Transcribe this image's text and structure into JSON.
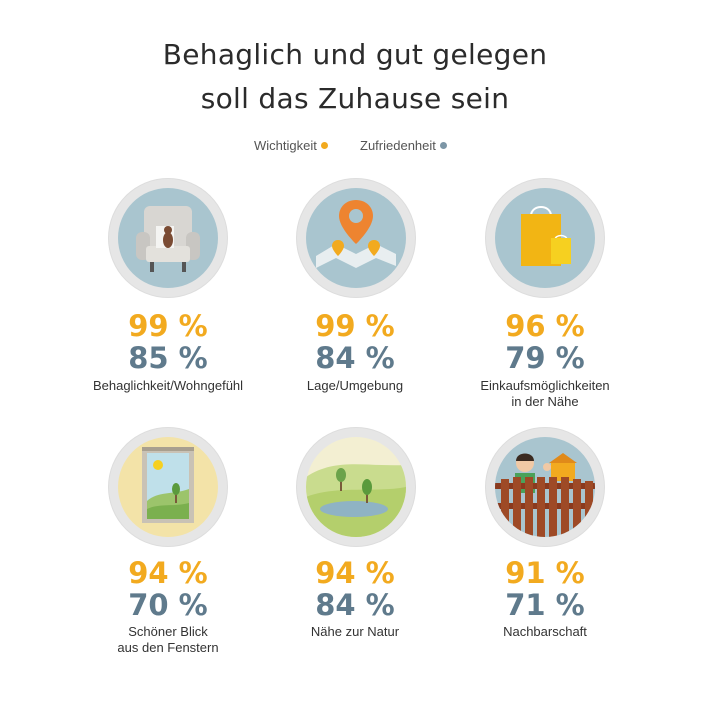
{
  "title_line1": "Behaglich und gut gelegen",
  "title_line2": "soll das Zuhause sein",
  "legend": {
    "importance": {
      "label": "Wichtigkeit",
      "color": "#f2aa1f"
    },
    "satisfaction": {
      "label": "Zufriedenheit",
      "color": "#7c96a6"
    }
  },
  "chart_data": {
    "type": "table",
    "columns": [
      "Wichtigkeit",
      "Zufriedenheit"
    ],
    "rows": [
      {
        "icon": "armchair-icon",
        "label_line1": "Behaglichkeit/Wohngefühl",
        "label_line2": "",
        "importance": "99 %",
        "satisfaction": "85 %",
        "importance_value": 99,
        "satisfaction_value": 85
      },
      {
        "icon": "location-pin-map-icon",
        "label_line1": "Lage/Umgebung",
        "label_line2": "",
        "importance": "99 %",
        "satisfaction": "84 %",
        "importance_value": 99,
        "satisfaction_value": 84
      },
      {
        "icon": "shopping-bag-icon",
        "label_line1": "Einkaufsmöglichkeiten",
        "label_line2": "in der Nähe",
        "importance": "96 %",
        "satisfaction": "79 %",
        "importance_value": 96,
        "satisfaction_value": 79
      },
      {
        "icon": "window-view-icon",
        "label_line1": "Schöner Blick",
        "label_line2": "aus den Fenstern",
        "importance": "94 %",
        "satisfaction": "70 %",
        "importance_value": 94,
        "satisfaction_value": 70
      },
      {
        "icon": "nature-lake-icon",
        "label_line1": "Nähe zur Natur",
        "label_line2": "",
        "importance": "94 %",
        "satisfaction": "84 %",
        "importance_value": 94,
        "satisfaction_value": 84
      },
      {
        "icon": "neighbor-fence-icon",
        "label_line1": "Nachbarschaft",
        "label_line2": "",
        "importance": "91 %",
        "satisfaction": "71 %",
        "importance_value": 91,
        "satisfaction_value": 71
      }
    ]
  }
}
